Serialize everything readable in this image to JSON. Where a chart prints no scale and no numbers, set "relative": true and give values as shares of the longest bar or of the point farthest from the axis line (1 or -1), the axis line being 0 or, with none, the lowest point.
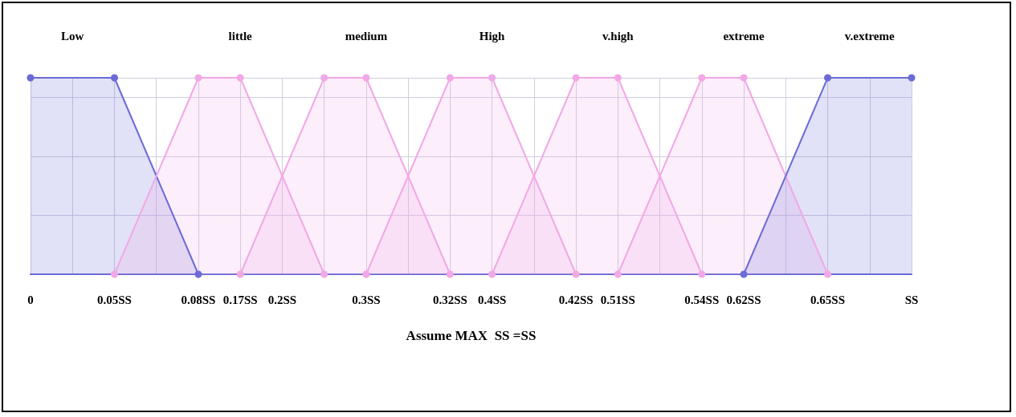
{
  "chart_data": {
    "type": "area",
    "relative": true,
    "xlabel": "Assume MAX  SS =SS",
    "categories": [
      "0",
      null,
      "0.05SS",
      null,
      "0.08SS",
      "0.17SS",
      "0.2SS",
      null,
      "0.3SS",
      null,
      "0.32SS",
      "0.4SS",
      null,
      "0.42SS",
      "0.51SS",
      null,
      "0.54SS",
      "0.62SS",
      null,
      "0.65SS",
      null,
      "SS"
    ],
    "grid": true,
    "marker": "circle",
    "legend": false,
    "series": [
      {
        "name": "Low",
        "color": "#6b6bd6",
        "values": [
          1,
          null,
          1,
          null,
          0,
          null,
          null,
          null,
          null,
          null,
          null,
          null,
          null,
          null,
          null,
          null,
          null,
          null,
          null,
          null,
          null,
          null
        ]
      },
      {
        "name": "little",
        "color": "#f2a8e6",
        "values": [
          null,
          null,
          0,
          null,
          1,
          1,
          null,
          0,
          null,
          null,
          null,
          null,
          null,
          null,
          null,
          null,
          null,
          null,
          null,
          null,
          null,
          null
        ]
      },
      {
        "name": "medium",
        "color": "#f2a8e6",
        "values": [
          null,
          null,
          null,
          null,
          null,
          0,
          null,
          1,
          1,
          null,
          0,
          null,
          null,
          null,
          null,
          null,
          null,
          null,
          null,
          null,
          null,
          null
        ]
      },
      {
        "name": "High",
        "color": "#f2a8e6",
        "values": [
          null,
          null,
          null,
          null,
          null,
          null,
          null,
          null,
          0,
          null,
          1,
          1,
          null,
          0,
          null,
          null,
          null,
          null,
          null,
          null,
          null,
          null
        ]
      },
      {
        "name": "v.high",
        "color": "#f2a8e6",
        "values": [
          null,
          null,
          null,
          null,
          null,
          null,
          null,
          null,
          null,
          null,
          null,
          0,
          null,
          1,
          1,
          null,
          0,
          null,
          null,
          null,
          null,
          null
        ]
      },
      {
        "name": "extreme",
        "color": "#f2a8e6",
        "values": [
          null,
          null,
          null,
          null,
          null,
          null,
          null,
          null,
          null,
          null,
          null,
          null,
          null,
          null,
          0,
          null,
          1,
          1,
          null,
          0,
          null,
          null
        ]
      },
      {
        "name": "v.extreme",
        "color": "#6b6bd6",
        "values": [
          null,
          null,
          null,
          null,
          null,
          null,
          null,
          null,
          null,
          null,
          null,
          null,
          null,
          null,
          null,
          null,
          null,
          0,
          null,
          1,
          null,
          1
        ]
      }
    ]
  }
}
